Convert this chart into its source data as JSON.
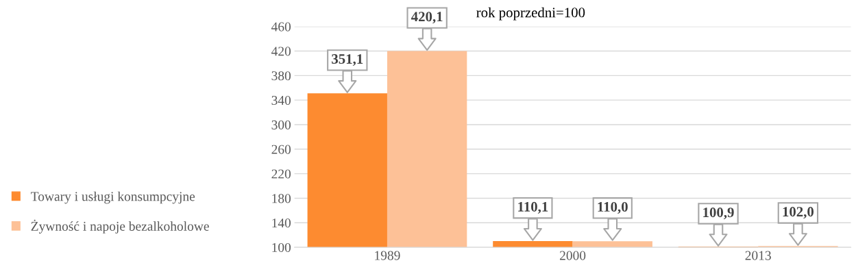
{
  "chart_data": {
    "type": "bar",
    "title": "rok poprzedni=100",
    "categories": [
      "1989",
      "2000",
      "2013"
    ],
    "series": [
      {
        "name": "Towary i usługi konsumpcyjne",
        "color": "#fd8b30",
        "values": [
          351.1,
          110.1,
          100.9
        ],
        "value_labels": [
          "351,1",
          "110,1",
          "100,9"
        ]
      },
      {
        "name": "Żywność i napoje bezalkoholowe",
        "color": "#fdc197",
        "values": [
          420.1,
          110.0,
          102.0
        ],
        "value_labels": [
          "420,1",
          "110,0",
          "102,0"
        ]
      }
    ],
    "ylim": [
      100,
      460
    ],
    "yticks": [
      100,
      140,
      180,
      220,
      260,
      300,
      340,
      380,
      420,
      460
    ],
    "grid": "y",
    "legend": "left"
  }
}
